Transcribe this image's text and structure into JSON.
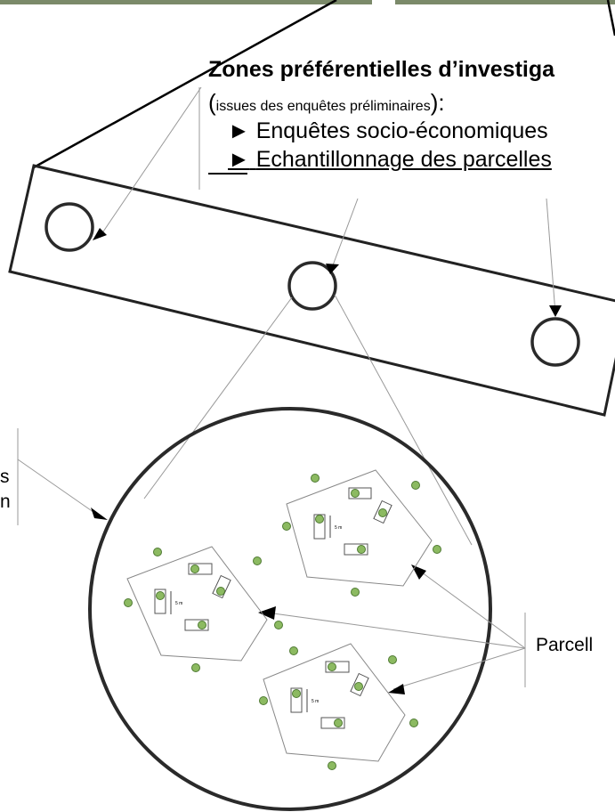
{
  "heading": {
    "title": "Zones préférentielles d’investiga",
    "subtitle_open": "(",
    "subtitle_small": "issues des enquêtes préliminaires",
    "subtitle_close": "):"
  },
  "bullets": [
    {
      "marker": "►",
      "text": "Enquêtes socio-économiques"
    },
    {
      "marker": "►",
      "text": "Echantillonnage des parcelles"
    }
  ],
  "labels": {
    "right": "Parcell",
    "left_line1": "s",
    "left_line2": "n"
  },
  "plots": {
    "size_label": "5 m"
  },
  "colors": {
    "dot_fill": "#8cba61",
    "dot_stroke": "#4f7a33",
    "line": "#000000",
    "leader": "#888888",
    "thick": "#2a2a2a"
  }
}
